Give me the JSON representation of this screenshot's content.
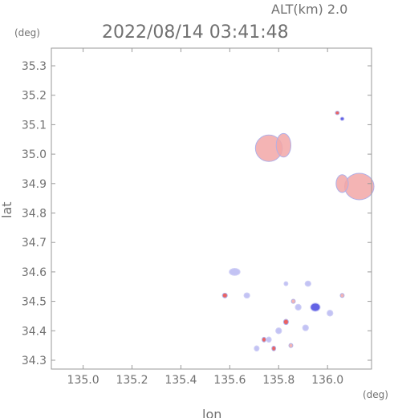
{
  "header": {
    "alt_label": "ALT(km) 2.0",
    "datetime": "2022/08/14 03:41:48",
    "y_unit": "(deg)",
    "x_unit": "(deg)"
  },
  "chart_data": {
    "type": "heatmap",
    "title": "2022/08/14 03:41:48",
    "xlabel": "lon",
    "ylabel": "lat",
    "xlim": [
      134.87,
      136.18
    ],
    "ylim": [
      34.27,
      35.36
    ],
    "x_ticks": [
      135.0,
      135.2,
      135.4,
      135.6,
      135.8,
      136.0
    ],
    "x_tick_labels": [
      "135.0",
      "135.2",
      "135.4",
      "135.6",
      "135.8",
      "136.0"
    ],
    "y_ticks": [
      34.3,
      34.4,
      34.5,
      34.6,
      34.7,
      34.8,
      34.9,
      35.0,
      35.1,
      35.2,
      35.3
    ],
    "y_tick_labels": [
      "34.3",
      "34.4",
      "34.5",
      "34.6",
      "34.7",
      "34.8",
      "34.9",
      "35.0",
      "35.1",
      "35.2",
      "35.3"
    ],
    "grid": false,
    "colors": {
      "positive": "#f2a7a7",
      "positive_strong": "#e84848",
      "negative": "#b9b9f2",
      "negative_strong": "#4848e0",
      "frame": "#9a9a9a"
    },
    "echo_regions": [
      {
        "lon": 135.76,
        "lat": 35.02,
        "rx": 0.055,
        "ry": 0.045,
        "sign": "positive"
      },
      {
        "lon": 135.82,
        "lat": 35.03,
        "rx": 0.03,
        "ry": 0.04,
        "sign": "positive"
      },
      {
        "lon": 136.13,
        "lat": 34.89,
        "rx": 0.06,
        "ry": 0.045,
        "sign": "positive"
      },
      {
        "lon": 136.06,
        "lat": 34.9,
        "rx": 0.025,
        "ry": 0.03,
        "sign": "positive"
      },
      {
        "lon": 136.04,
        "lat": 35.14,
        "rx": 0.008,
        "ry": 0.006,
        "sign": "positive_strong"
      },
      {
        "lon": 136.06,
        "lat": 35.12,
        "rx": 0.008,
        "ry": 0.006,
        "sign": "negative_strong"
      },
      {
        "lon": 135.62,
        "lat": 34.6,
        "rx": 0.022,
        "ry": 0.012,
        "sign": "negative"
      },
      {
        "lon": 135.58,
        "lat": 34.52,
        "rx": 0.01,
        "ry": 0.008,
        "sign": "positive_strong"
      },
      {
        "lon": 135.67,
        "lat": 34.52,
        "rx": 0.012,
        "ry": 0.009,
        "sign": "negative"
      },
      {
        "lon": 135.83,
        "lat": 34.56,
        "rx": 0.008,
        "ry": 0.007,
        "sign": "negative"
      },
      {
        "lon": 135.92,
        "lat": 34.56,
        "rx": 0.012,
        "ry": 0.009,
        "sign": "negative"
      },
      {
        "lon": 135.95,
        "lat": 34.48,
        "rx": 0.02,
        "ry": 0.014,
        "sign": "negative_strong"
      },
      {
        "lon": 135.88,
        "lat": 34.48,
        "rx": 0.012,
        "ry": 0.01,
        "sign": "negative"
      },
      {
        "lon": 136.01,
        "lat": 34.46,
        "rx": 0.012,
        "ry": 0.01,
        "sign": "negative"
      },
      {
        "lon": 135.83,
        "lat": 34.43,
        "rx": 0.01,
        "ry": 0.009,
        "sign": "positive_strong"
      },
      {
        "lon": 135.8,
        "lat": 34.4,
        "rx": 0.012,
        "ry": 0.01,
        "sign": "negative"
      },
      {
        "lon": 135.91,
        "lat": 34.41,
        "rx": 0.012,
        "ry": 0.01,
        "sign": "negative"
      },
      {
        "lon": 135.76,
        "lat": 34.37,
        "rx": 0.01,
        "ry": 0.009,
        "sign": "negative"
      },
      {
        "lon": 135.78,
        "lat": 34.34,
        "rx": 0.008,
        "ry": 0.008,
        "sign": "positive_strong"
      },
      {
        "lon": 135.71,
        "lat": 34.34,
        "rx": 0.01,
        "ry": 0.009,
        "sign": "negative"
      },
      {
        "lon": 135.85,
        "lat": 34.35,
        "rx": 0.008,
        "ry": 0.007,
        "sign": "positive"
      },
      {
        "lon": 136.06,
        "lat": 34.52,
        "rx": 0.008,
        "ry": 0.007,
        "sign": "positive"
      },
      {
        "lon": 135.74,
        "lat": 34.37,
        "rx": 0.008,
        "ry": 0.008,
        "sign": "positive_strong"
      },
      {
        "lon": 135.86,
        "lat": 34.5,
        "rx": 0.008,
        "ry": 0.007,
        "sign": "positive"
      }
    ]
  }
}
